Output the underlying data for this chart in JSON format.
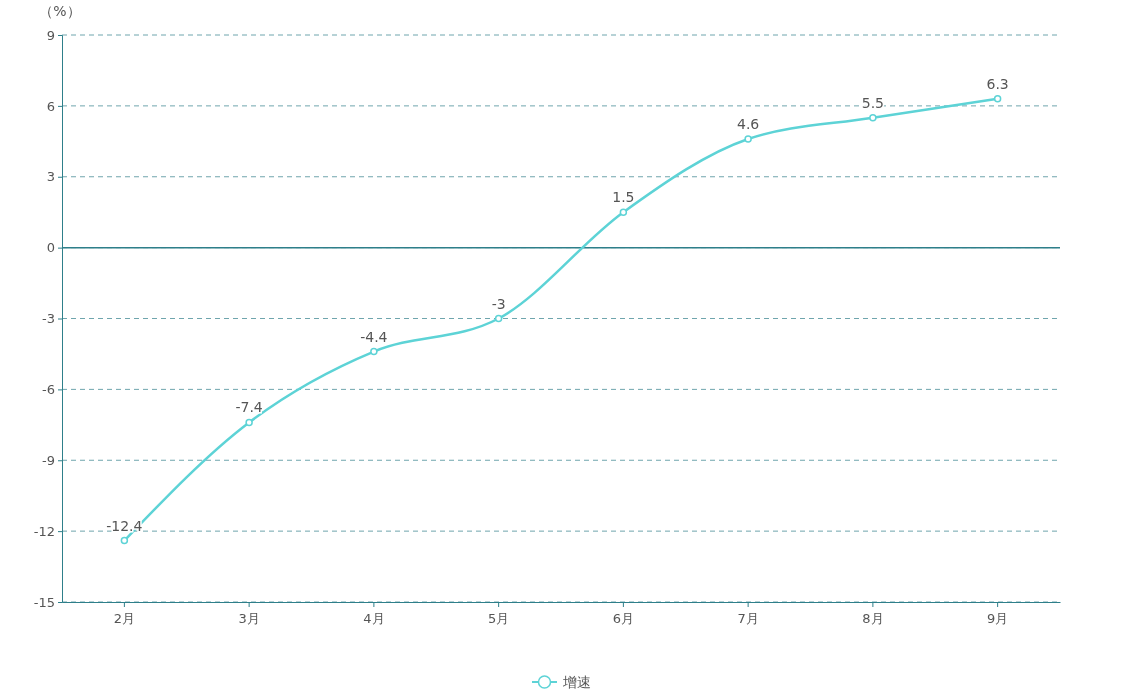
{
  "chart_data": {
    "type": "line",
    "ylabel": "（%）",
    "categories": [
      "2月",
      "3月",
      "4月",
      "5月",
      "6月",
      "7月",
      "8月",
      "9月"
    ],
    "series": [
      {
        "name": "增速",
        "color": "#5dd3d6",
        "values": [
          -12.4,
          -7.4,
          -4.4,
          -3,
          1.5,
          4.6,
          5.5,
          6.3
        ]
      }
    ],
    "ylim": [
      -15,
      9
    ],
    "yticks": [
      -15,
      -12,
      -9,
      -6,
      -3,
      0,
      3,
      6,
      9
    ],
    "ref_lines": [
      {
        "axis": "y",
        "value": 0,
        "color": "#2e7f8a",
        "line_style": "solid"
      }
    ],
    "grid": "y",
    "legend": "bottom",
    "marker": "circle",
    "line_style": "solid",
    "data_labels": true
  }
}
